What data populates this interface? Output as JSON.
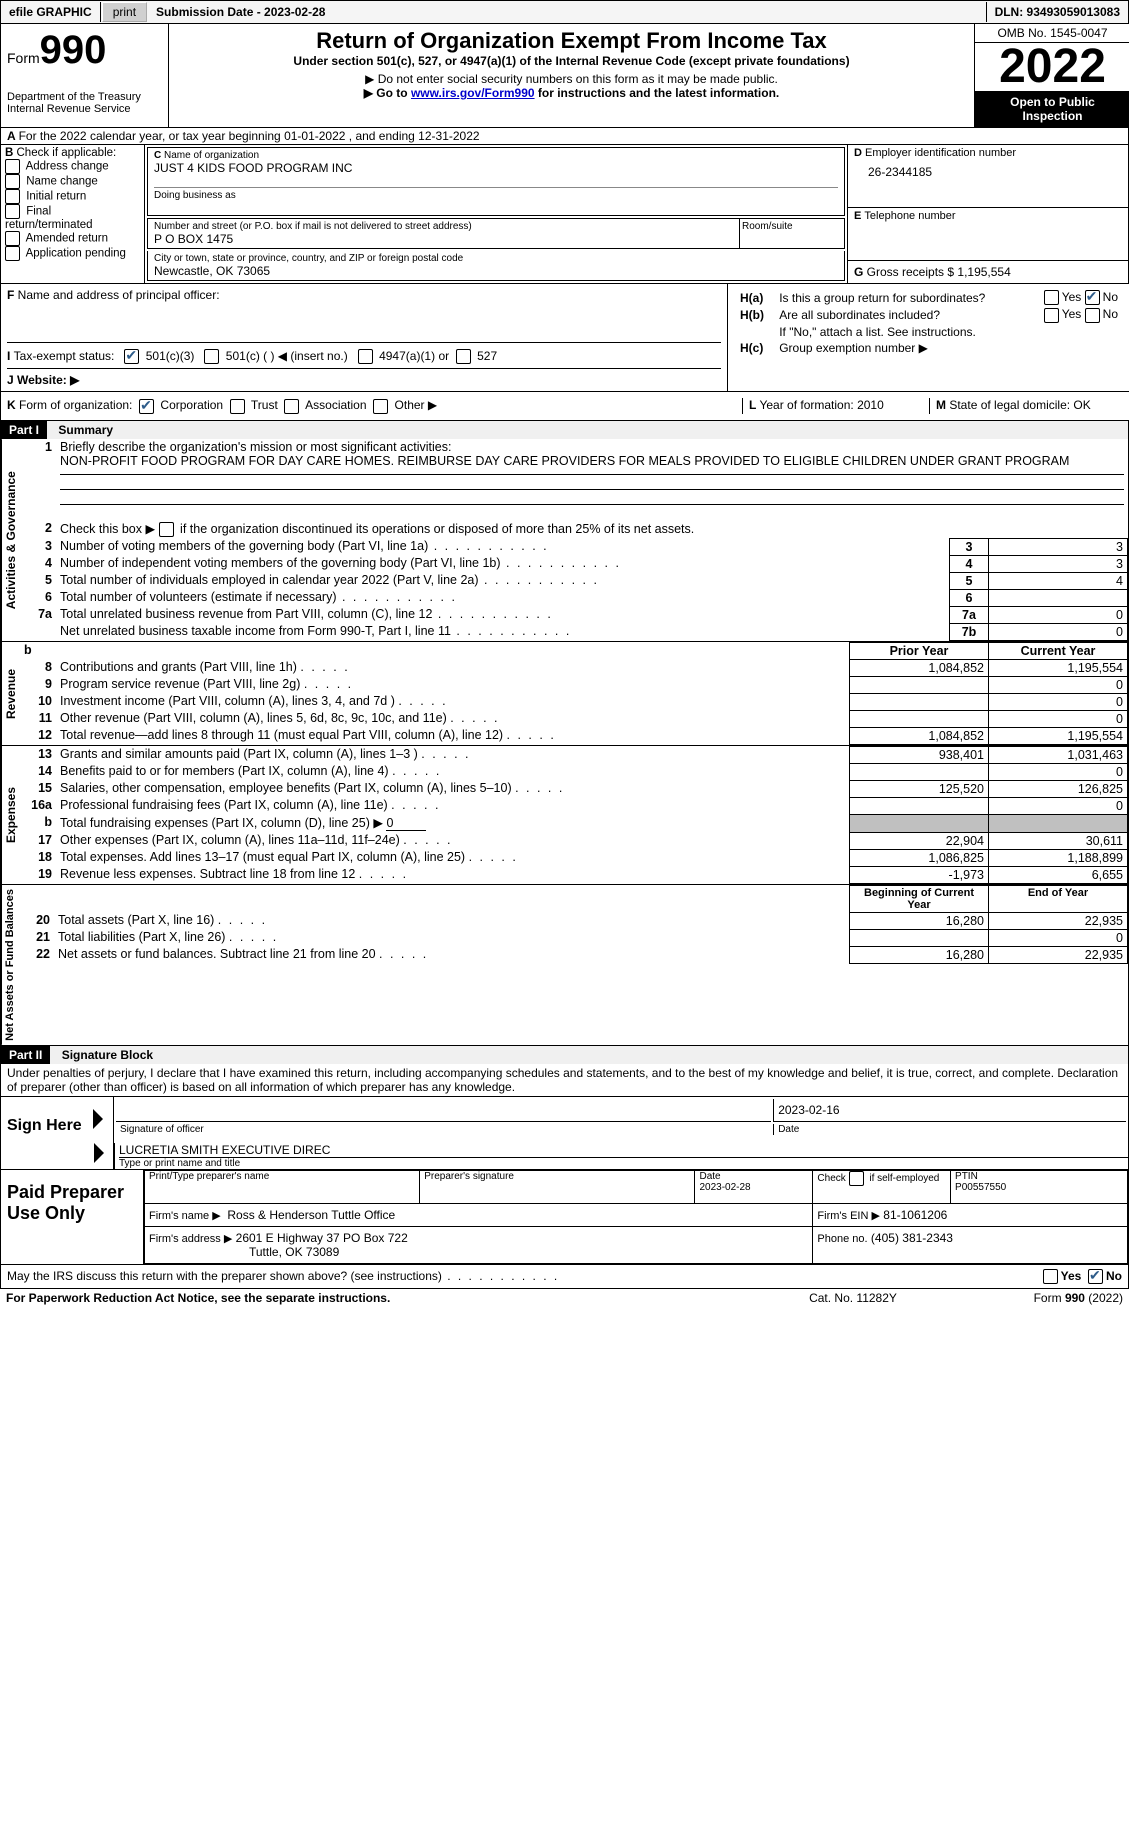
{
  "topBar": {
    "efile": "efile GRAPHIC",
    "print": "print",
    "submission": "Submission Date - 2023-02-28",
    "dln": "DLN: 93493059013083"
  },
  "header": {
    "formWord": "Form",
    "formNum": "990",
    "dept": "Department of the Treasury",
    "irs": "Internal Revenue Service",
    "title": "Return of Organization Exempt From Income Tax",
    "subtitle": "Under section 501(c), 527, or 4947(a)(1) of the Internal Revenue Code (except private foundations)",
    "note1": "▶ Do not enter social security numbers on this form as it may be made public.",
    "note2_pre": "▶ Go to ",
    "note2_link": "www.irs.gov/Form990",
    "note2_post": " for instructions and the latest information.",
    "omb": "OMB No. 1545-0047",
    "year": "2022",
    "open": "Open to Public Inspection"
  },
  "sectionA": {
    "calendarLine": "For the 2022 calendar year, or tax year beginning 01-01-2022   , and ending 12-31-2022",
    "bLabel": "Check if applicable:",
    "bOptions": [
      "Address change",
      "Name change",
      "Initial return",
      "Final return/terminated",
      "Amended return",
      "Application pending"
    ],
    "cLabel": "Name of organization",
    "orgName": "JUST 4 KIDS FOOD PROGRAM INC",
    "dba": "Doing business as",
    "streetLabel": "Number and street (or P.O. box if mail is not delivered to street address)",
    "roomLabel": "Room/suite",
    "street": "P O BOX 1475",
    "cityLabel": "City or town, state or province, country, and ZIP or foreign postal code",
    "city": "Newcastle, OK  73065",
    "dLabel": "Employer identification number",
    "ein": "26-2344185",
    "eLabel": "Telephone number",
    "gLabel": "Gross receipts $",
    "gVal": "1,195,554",
    "fLabel": "Name and address of principal officer:",
    "haLabel": "Is this a group return for subordinates?",
    "hbLabel": "Are all subordinates included?",
    "hbNote": "If \"No,\" attach a list. See instructions.",
    "hcLabel": "Group exemption number ▶",
    "yes": "Yes",
    "no": "No",
    "taxExempt": "Tax-exempt status:",
    "opt501c3": "501(c)(3)",
    "opt501c": "501(c) (  ) ◀ (insert no.)",
    "opt4947": "4947(a)(1) or",
    "opt527": "527",
    "website": "Website: ▶",
    "kLabel": "Form of organization:",
    "kCorp": "Corporation",
    "kTrust": "Trust",
    "kAssoc": "Association",
    "kOther": "Other ▶",
    "lLabel": "Year of formation:",
    "lVal": "2010",
    "mLabel": "State of legal domicile:",
    "mVal": "OK"
  },
  "part1": {
    "header": "Part I",
    "title": "Summary",
    "sideActivities": "Activities & Governance",
    "sideRevenue": "Revenue",
    "sideExpenses": "Expenses",
    "sideNetAssets": "Net Assets or Fund Balances",
    "line1": "Briefly describe the organization's mission or most significant activities:",
    "mission": "NON-PROFIT FOOD PROGRAM FOR DAY CARE HOMES. REIMBURSE DAY CARE PROVIDERS FOR MEALS PROVIDED TO ELIGIBLE CHILDREN UNDER GRANT PROGRAM",
    "line2": "Check this box ▶",
    "line2b": "if the organization discontinued its operations or disposed of more than 25% of its net assets.",
    "rows": [
      {
        "n": "3",
        "t": "Number of voting members of the governing body (Part VI, line 1a)",
        "box": "3",
        "v": "3"
      },
      {
        "n": "4",
        "t": "Number of independent voting members of the governing body (Part VI, line 1b)",
        "box": "4",
        "v": "3"
      },
      {
        "n": "5",
        "t": "Total number of individuals employed in calendar year 2022 (Part V, line 2a)",
        "box": "5",
        "v": "4"
      },
      {
        "n": "6",
        "t": "Total number of volunteers (estimate if necessary)",
        "box": "6",
        "v": ""
      },
      {
        "n": "7a",
        "t": "Total unrelated business revenue from Part VIII, column (C), line 12",
        "box": "7a",
        "v": "0"
      },
      {
        "n": "",
        "t": "Net unrelated business taxable income from Form 990-T, Part I, line 11",
        "box": "7b",
        "v": "0"
      }
    ],
    "priorYear": "Prior Year",
    "currentYear": "Current Year",
    "revRows": [
      {
        "n": "8",
        "t": "Contributions and grants (Part VIII, line 1h)",
        "p": "1,084,852",
        "c": "1,195,554"
      },
      {
        "n": "9",
        "t": "Program service revenue (Part VIII, line 2g)",
        "p": "",
        "c": "0"
      },
      {
        "n": "10",
        "t": "Investment income (Part VIII, column (A), lines 3, 4, and 7d )",
        "p": "",
        "c": "0"
      },
      {
        "n": "11",
        "t": "Other revenue (Part VIII, column (A), lines 5, 6d, 8c, 9c, 10c, and 11e)",
        "p": "",
        "c": "0"
      },
      {
        "n": "12",
        "t": "Total revenue—add lines 8 through 11 (must equal Part VIII, column (A), line 12)",
        "p": "1,084,852",
        "c": "1,195,554"
      }
    ],
    "expRows": [
      {
        "n": "13",
        "t": "Grants and similar amounts paid (Part IX, column (A), lines 1–3 )",
        "p": "938,401",
        "c": "1,031,463"
      },
      {
        "n": "14",
        "t": "Benefits paid to or for members (Part IX, column (A), line 4)",
        "p": "",
        "c": "0"
      },
      {
        "n": "15",
        "t": "Salaries, other compensation, employee benefits (Part IX, column (A), lines 5–10)",
        "p": "125,520",
        "c": "126,825"
      },
      {
        "n": "16a",
        "t": "Professional fundraising fees (Part IX, column (A), line 11e)",
        "p": "",
        "c": "0"
      },
      {
        "n": "b",
        "t": "Total fundraising expenses (Part IX, column (D), line 25) ▶",
        "p": "GREY",
        "c": "GREY",
        "extra": "0"
      },
      {
        "n": "17",
        "t": "Other expenses (Part IX, column (A), lines 11a–11d, 11f–24e)",
        "p": "22,904",
        "c": "30,611"
      },
      {
        "n": "18",
        "t": "Total expenses. Add lines 13–17 (must equal Part IX, column (A), line 25)",
        "p": "1,086,825",
        "c": "1,188,899"
      },
      {
        "n": "19",
        "t": "Revenue less expenses. Subtract line 18 from line 12",
        "p": "-1,973",
        "c": "6,655"
      }
    ],
    "begYear": "Beginning of Current Year",
    "endYear": "End of Year",
    "netRows": [
      {
        "n": "20",
        "t": "Total assets (Part X, line 16)",
        "p": "16,280",
        "c": "22,935"
      },
      {
        "n": "21",
        "t": "Total liabilities (Part X, line 26)",
        "p": "",
        "c": "0"
      },
      {
        "n": "22",
        "t": "Net assets or fund balances. Subtract line 21 from line 20",
        "p": "16,280",
        "c": "22,935"
      }
    ]
  },
  "part2": {
    "header": "Part II",
    "title": "Signature Block",
    "decl": "Under penalties of perjury, I declare that I have examined this return, including accompanying schedules and statements, and to the best of my knowledge and belief, it is true, correct, and complete. Declaration of preparer (other than officer) is based on all information of which preparer has any knowledge.",
    "signHere": "Sign Here",
    "sigOfficer": "Signature of officer",
    "sigDate": "2023-02-16",
    "dateLabel": "Date",
    "typedName": "LUCRETIA SMITH  EXECUTIVE DIREC",
    "typedLabel": "Type or print name and title",
    "paidPrep": "Paid Preparer Use Only",
    "col1": "Print/Type preparer's name",
    "col2": "Preparer's signature",
    "col3a": "Date",
    "col3b": "2023-02-28",
    "col4a": "Check",
    "col4b": "if self-employed",
    "col5a": "PTIN",
    "col5b": "P00557550",
    "firmName": "Firm's name    ▶",
    "firmNameVal": "Ross & Henderson Tuttle Office",
    "firmEin": "Firm's EIN ▶",
    "firmEinVal": "81-1061206",
    "firmAddr": "Firm's address ▶",
    "firmAddrVal1": "2601 E Highway 37 PO Box 722",
    "firmAddrVal2": "Tuttle, OK  73089",
    "phone": "Phone no.",
    "phoneVal": "(405) 381-2343",
    "discuss": "May the IRS discuss this return with the preparer shown above? (see instructions)",
    "paperwork": "For Paperwork Reduction Act Notice, see the separate instructions.",
    "cat": "Cat. No. 11282Y",
    "formFoot": "Form 990 (2022)"
  }
}
